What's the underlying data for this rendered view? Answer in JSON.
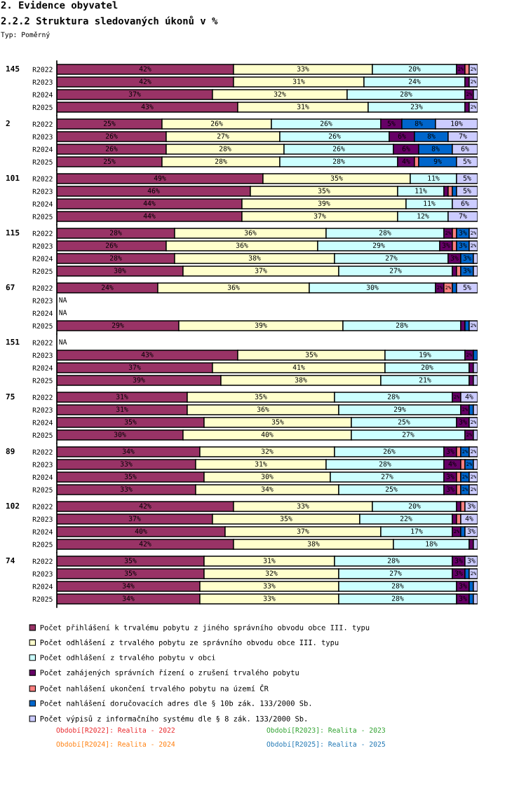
{
  "chart_data": [
    {
      "type": "bar",
      "orientation": "horizontal",
      "stacked": true,
      "title": "145",
      "categories": [
        "R2022",
        "R2023",
        "R2024",
        "R2025"
      ],
      "xlim": [
        0,
        100
      ],
      "tick_labels": "y",
      "annotations": [
        "2. Evidence obyvatel",
        "2.2.2 Struktura sledovaných úkonů v %",
        "Typ: Poměrný"
      ],
      "series": [
        {
          "color": "#993366",
          "values": [
            42,
            42,
            37,
            43
          ],
          "value_labels": [
            "42%",
            "42%",
            "37%",
            "43%"
          ]
        },
        {
          "color": "#ffffcc",
          "values": [
            33,
            31,
            32,
            31
          ],
          "value_labels": [
            "33%",
            "31%",
            "32%",
            "31%"
          ]
        },
        {
          "color": "#ccffff",
          "values": [
            20,
            24,
            28,
            23
          ],
          "value_labels": [
            "20%",
            "24%",
            "28%",
            "23%"
          ]
        },
        {
          "color": "#660066",
          "values": [
            2,
            1,
            2,
            1
          ],
          "value_labels": [
            "2%",
            null,
            "2%",
            null
          ]
        },
        {
          "color": "#ff8080",
          "values": [
            1,
            0,
            0,
            0
          ],
          "value_labels": [
            null,
            null,
            null,
            null
          ]
        },
        {
          "color": "#0066cc",
          "values": [
            0,
            0,
            0,
            0
          ],
          "value_labels": [
            null,
            null,
            null,
            null
          ]
        },
        {
          "color": "#ccccff",
          "values": [
            2,
            2,
            1,
            2
          ],
          "value_labels": [
            "2%",
            "2%",
            null,
            "2%"
          ]
        }
      ]
    },
    {
      "type": "bar",
      "orientation": "horizontal",
      "stacked": true,
      "title": "2",
      "categories": [
        "R2022",
        "R2023",
        "R2024",
        "R2025"
      ],
      "xlim": [
        0,
        100
      ],
      "tick_labels": "y",
      "series": [
        {
          "color": "#993366",
          "values": [
            25,
            26,
            26,
            25
          ],
          "value_labels": [
            "25%",
            "26%",
            "26%",
            "25%"
          ]
        },
        {
          "color": "#ffffcc",
          "values": [
            26,
            27,
            28,
            28
          ],
          "value_labels": [
            "26%",
            "27%",
            "28%",
            "28%"
          ]
        },
        {
          "color": "#ccffff",
          "values": [
            26,
            26,
            26,
            28
          ],
          "value_labels": [
            "26%",
            "26%",
            "26%",
            "28%"
          ]
        },
        {
          "color": "#660066",
          "values": [
            5,
            6,
            6,
            4
          ],
          "value_labels": [
            "5%",
            "6%",
            "6%",
            "4%"
          ]
        },
        {
          "color": "#ff8080",
          "values": [
            0,
            0,
            0,
            1
          ],
          "value_labels": [
            null,
            null,
            null,
            null
          ]
        },
        {
          "color": "#0066cc",
          "values": [
            8,
            8,
            8,
            9
          ],
          "value_labels": [
            "8%",
            "8%",
            "8%",
            "9%"
          ]
        },
        {
          "color": "#ccccff",
          "values": [
            10,
            7,
            6,
            5
          ],
          "value_labels": [
            "10%",
            "7%",
            "6%",
            "5%"
          ]
        }
      ]
    },
    {
      "type": "bar",
      "orientation": "horizontal",
      "stacked": true,
      "title": "101",
      "categories": [
        "R2022",
        "R2023",
        "R2024",
        "R2025"
      ],
      "xlim": [
        0,
        100
      ],
      "tick_labels": "y",
      "series": [
        {
          "color": "#993366",
          "values": [
            49,
            46,
            44,
            44
          ],
          "value_labels": [
            "49%",
            "46%",
            "44%",
            "44%"
          ]
        },
        {
          "color": "#ffffcc",
          "values": [
            35,
            35,
            39,
            37
          ],
          "value_labels": [
            "35%",
            "35%",
            "39%",
            "37%"
          ]
        },
        {
          "color": "#ccffff",
          "values": [
            11,
            11,
            11,
            12
          ],
          "value_labels": [
            "11%",
            "11%",
            "11%",
            "12%"
          ]
        },
        {
          "color": "#660066",
          "values": [
            0,
            1,
            0,
            0
          ],
          "value_labels": [
            null,
            null,
            null,
            null
          ]
        },
        {
          "color": "#ff8080",
          "values": [
            0,
            1,
            0,
            0
          ],
          "value_labels": [
            null,
            null,
            null,
            null
          ]
        },
        {
          "color": "#0066cc",
          "values": [
            0,
            1,
            0,
            0
          ],
          "value_labels": [
            null,
            null,
            null,
            null
          ]
        },
        {
          "color": "#ccccff",
          "values": [
            5,
            5,
            6,
            7
          ],
          "value_labels": [
            "5%",
            "5%",
            "6%",
            "7%"
          ]
        }
      ]
    },
    {
      "type": "bar",
      "orientation": "horizontal",
      "stacked": true,
      "title": "115",
      "categories": [
        "R2022",
        "R2023",
        "R2024",
        "R2025"
      ],
      "xlim": [
        0,
        100
      ],
      "tick_labels": "y",
      "series": [
        {
          "color": "#993366",
          "values": [
            28,
            26,
            28,
            30
          ],
          "value_labels": [
            "28%",
            "26%",
            "28%",
            "30%"
          ]
        },
        {
          "color": "#ffffcc",
          "values": [
            36,
            36,
            38,
            37
          ],
          "value_labels": [
            "36%",
            "36%",
            "38%",
            "37%"
          ]
        },
        {
          "color": "#ccffff",
          "values": [
            28,
            29,
            27,
            27
          ],
          "value_labels": [
            "28%",
            "29%",
            "27%",
            "27%"
          ]
        },
        {
          "color": "#660066",
          "values": [
            2,
            3,
            3,
            1
          ],
          "value_labels": [
            "2%",
            "3%",
            "3%",
            null
          ]
        },
        {
          "color": "#ff8080",
          "values": [
            1,
            1,
            0,
            1
          ],
          "value_labels": [
            null,
            null,
            null,
            null
          ]
        },
        {
          "color": "#0066cc",
          "values": [
            3,
            3,
            3,
            3
          ],
          "value_labels": [
            "3%",
            "3%",
            "3%",
            "3%"
          ]
        },
        {
          "color": "#ccccff",
          "values": [
            2,
            2,
            1,
            1
          ],
          "value_labels": [
            "2%",
            "2%",
            null,
            null
          ]
        }
      ]
    },
    {
      "type": "bar",
      "orientation": "horizontal",
      "stacked": true,
      "title": "67",
      "categories": [
        "R2022",
        "R2023",
        "R2024",
        "R2025"
      ],
      "xlim": [
        0,
        100
      ],
      "tick_labels": "y",
      "annotations": [
        "NA",
        "NA"
      ],
      "series": [
        {
          "color": "#993366",
          "values": [
            24,
            null,
            null,
            29
          ],
          "value_labels": [
            "24%",
            null,
            null,
            "29%"
          ]
        },
        {
          "color": "#ffffcc",
          "values": [
            36,
            null,
            null,
            39
          ],
          "value_labels": [
            "36%",
            null,
            null,
            "39%"
          ]
        },
        {
          "color": "#ccffff",
          "values": [
            30,
            null,
            null,
            28
          ],
          "value_labels": [
            "30%",
            null,
            null,
            "28%"
          ]
        },
        {
          "color": "#660066",
          "values": [
            2,
            null,
            null,
            1
          ],
          "value_labels": [
            "2%",
            null,
            null,
            null
          ]
        },
        {
          "color": "#ff8080",
          "values": [
            2,
            null,
            null,
            0
          ],
          "value_labels": [
            "2%",
            null,
            null,
            null
          ]
        },
        {
          "color": "#0066cc",
          "values": [
            1,
            null,
            null,
            1
          ],
          "value_labels": [
            null,
            null,
            null,
            null
          ]
        },
        {
          "color": "#ccccff",
          "values": [
            5,
            null,
            null,
            2
          ],
          "value_labels": [
            "5%",
            null,
            null,
            "2%"
          ]
        }
      ]
    },
    {
      "type": "bar",
      "orientation": "horizontal",
      "stacked": true,
      "title": "151",
      "categories": [
        "R2022",
        "R2023",
        "R2024",
        "R2025"
      ],
      "xlim": [
        0,
        100
      ],
      "tick_labels": "y",
      "annotations": [
        "NA"
      ],
      "series": [
        {
          "color": "#993366",
          "values": [
            null,
            43,
            37,
            39
          ],
          "value_labels": [
            null,
            "43%",
            "37%",
            "39%"
          ]
        },
        {
          "color": "#ffffcc",
          "values": [
            null,
            35,
            41,
            38
          ],
          "value_labels": [
            null,
            "35%",
            "41%",
            "38%"
          ]
        },
        {
          "color": "#ccffff",
          "values": [
            null,
            19,
            20,
            21
          ],
          "value_labels": [
            null,
            "19%",
            "20%",
            "21%"
          ]
        },
        {
          "color": "#660066",
          "values": [
            null,
            2,
            1,
            1
          ],
          "value_labels": [
            null,
            "2%",
            null,
            null
          ]
        },
        {
          "color": "#ff8080",
          "values": [
            null,
            0,
            0,
            0
          ],
          "value_labels": [
            null,
            null,
            null,
            null
          ]
        },
        {
          "color": "#0066cc",
          "values": [
            null,
            1,
            0,
            0
          ],
          "value_labels": [
            null,
            null,
            null,
            null
          ]
        },
        {
          "color": "#ccccff",
          "values": [
            null,
            0,
            1,
            1
          ],
          "value_labels": [
            null,
            null,
            null,
            null
          ]
        }
      ]
    },
    {
      "type": "bar",
      "orientation": "horizontal",
      "stacked": true,
      "title": "75",
      "categories": [
        "R2022",
        "R2023",
        "R2024",
        "R2025"
      ],
      "xlim": [
        0,
        100
      ],
      "tick_labels": "y",
      "series": [
        {
          "color": "#993366",
          "values": [
            31,
            31,
            35,
            30
          ],
          "value_labels": [
            "31%",
            "31%",
            "35%",
            "30%"
          ]
        },
        {
          "color": "#ffffcc",
          "values": [
            35,
            36,
            35,
            40
          ],
          "value_labels": [
            "35%",
            "36%",
            "35%",
            "40%"
          ]
        },
        {
          "color": "#ccffff",
          "values": [
            28,
            29,
            25,
            27
          ],
          "value_labels": [
            "28%",
            "29%",
            "25%",
            "27%"
          ]
        },
        {
          "color": "#660066",
          "values": [
            2,
            2,
            3,
            2
          ],
          "value_labels": [
            "2%",
            "2%",
            "3%",
            "2%"
          ]
        },
        {
          "color": "#ff8080",
          "values": [
            0,
            0,
            0,
            0
          ],
          "value_labels": [
            null,
            null,
            null,
            null
          ]
        },
        {
          "color": "#0066cc",
          "values": [
            0,
            1,
            0,
            0
          ],
          "value_labels": [
            null,
            null,
            null,
            null
          ]
        },
        {
          "color": "#ccccff",
          "values": [
            4,
            1,
            2,
            1
          ],
          "value_labels": [
            "4%",
            null,
            "2%",
            null
          ]
        }
      ]
    },
    {
      "type": "bar",
      "orientation": "horizontal",
      "stacked": true,
      "title": "89",
      "categories": [
        "R2022",
        "R2023",
        "R2024",
        "R2025"
      ],
      "xlim": [
        0,
        100
      ],
      "tick_labels": "y",
      "series": [
        {
          "color": "#993366",
          "values": [
            34,
            33,
            35,
            33
          ],
          "value_labels": [
            "34%",
            "33%",
            "35%",
            "33%"
          ]
        },
        {
          "color": "#ffffcc",
          "values": [
            32,
            31,
            30,
            34
          ],
          "value_labels": [
            "32%",
            "31%",
            "30%",
            "34%"
          ]
        },
        {
          "color": "#ccffff",
          "values": [
            26,
            28,
            27,
            25
          ],
          "value_labels": [
            "26%",
            "28%",
            "27%",
            "25%"
          ]
        },
        {
          "color": "#660066",
          "values": [
            3,
            4,
            3,
            3
          ],
          "value_labels": [
            "3%",
            "4%",
            "3%",
            "3%"
          ]
        },
        {
          "color": "#ff8080",
          "values": [
            1,
            1,
            1,
            1
          ],
          "value_labels": [
            null,
            null,
            null,
            null
          ]
        },
        {
          "color": "#0066cc",
          "values": [
            2,
            2,
            2,
            2
          ],
          "value_labels": [
            "2%",
            "2%",
            "2%",
            "2%"
          ]
        },
        {
          "color": "#ccccff",
          "values": [
            2,
            1,
            2,
            2
          ],
          "value_labels": [
            "2%",
            null,
            "2%",
            "2%"
          ]
        }
      ]
    },
    {
      "type": "bar",
      "orientation": "horizontal",
      "stacked": true,
      "title": "102",
      "categories": [
        "R2022",
        "R2023",
        "R2024",
        "R2025"
      ],
      "xlim": [
        0,
        100
      ],
      "tick_labels": "y",
      "series": [
        {
          "color": "#993366",
          "values": [
            42,
            37,
            40,
            42
          ],
          "value_labels": [
            "42%",
            "37%",
            "40%",
            "42%"
          ]
        },
        {
          "color": "#ffffcc",
          "values": [
            33,
            35,
            37,
            38
          ],
          "value_labels": [
            "33%",
            "35%",
            "37%",
            "38%"
          ]
        },
        {
          "color": "#ccffff",
          "values": [
            20,
            22,
            17,
            18
          ],
          "value_labels": [
            "20%",
            "22%",
            "17%",
            "18%"
          ]
        },
        {
          "color": "#660066",
          "values": [
            1,
            1,
            2,
            1
          ],
          "value_labels": [
            null,
            null,
            "2%",
            null
          ]
        },
        {
          "color": "#ff8080",
          "values": [
            1,
            1,
            0,
            0
          ],
          "value_labels": [
            null,
            null,
            null,
            null
          ]
        },
        {
          "color": "#0066cc",
          "values": [
            0,
            0,
            1,
            0
          ],
          "value_labels": [
            null,
            null,
            null,
            null
          ]
        },
        {
          "color": "#ccccff",
          "values": [
            3,
            4,
            3,
            1
          ],
          "value_labels": [
            "3%",
            "4%",
            "3%",
            null
          ]
        }
      ]
    },
    {
      "type": "bar",
      "orientation": "horizontal",
      "stacked": true,
      "title": "74",
      "categories": [
        "R2022",
        "R2023",
        "R2024",
        "R2025"
      ],
      "xlim": [
        0,
        100
      ],
      "tick_labels": "y",
      "legend": "bottom",
      "annotations": [
        "Období[R2022]: Realita - 2022",
        "Období[R2023]: Realita - 2023",
        "Období[R2024]: Realita - 2024",
        "Období[R2025]: Realita - 2025"
      ],
      "series": [
        {
          "name": "Počet přihlášení k trvalému pobytu z jiného správního obvodu obce III. typu",
          "color": "#993366",
          "values": [
            35,
            35,
            34,
            34
          ],
          "value_labels": [
            "35%",
            "35%",
            "34%",
            "34%"
          ]
        },
        {
          "name": "Počet odhlášení z trvalého pobytu ze správního obvodu obce III. typu",
          "color": "#ffffcc",
          "values": [
            31,
            32,
            33,
            33
          ],
          "value_labels": [
            "31%",
            "32%",
            "33%",
            "33%"
          ]
        },
        {
          "name": "Počet odhlášení z trvalého pobytu v obci",
          "color": "#ccffff",
          "values": [
            28,
            27,
            28,
            28
          ],
          "value_labels": [
            "28%",
            "27%",
            "28%",
            "28%"
          ]
        },
        {
          "name": "Počet zahájených správních řízení o zrušení trvalého pobytu",
          "color": "#660066",
          "values": [
            3,
            3,
            3,
            3
          ],
          "value_labels": [
            "3%",
            "3%",
            "3%",
            "3%"
          ]
        },
        {
          "name": "Počet nahlášení ukončení trvalého pobytu na území ČR",
          "color": "#ff8080",
          "values": [
            0,
            0,
            0,
            0
          ],
          "value_labels": [
            null,
            null,
            null,
            null
          ]
        },
        {
          "name": "Počet nahlášení doručovacích adres dle § 10b zák. 133/2000 Sb.",
          "color": "#0066cc",
          "values": [
            0,
            1,
            1,
            1
          ],
          "value_labels": [
            null,
            null,
            null,
            null
          ]
        },
        {
          "name": "Počet výpisů z informačního systému dle § 8 zák. 133/2000 Sb.",
          "color": "#ccccff",
          "values": [
            3,
            2,
            1,
            1
          ],
          "value_labels": [
            "3%",
            "2%",
            null,
            null
          ]
        }
      ]
    }
  ]
}
